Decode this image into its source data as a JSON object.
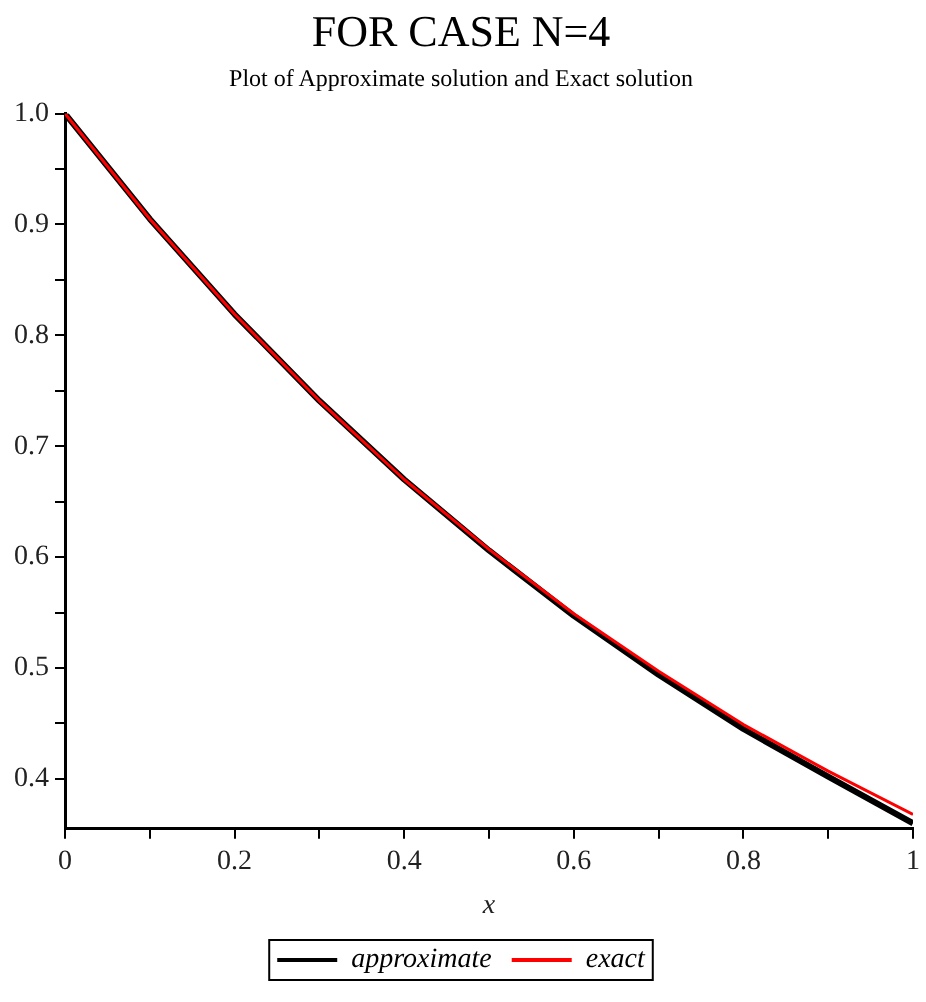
{
  "chart_data": {
    "type": "line",
    "title": "FOR CASE N=4",
    "subtitle": "Plot of Approximate solution and Exact solution",
    "xlabel": "x",
    "x": [
      0,
      0.1,
      0.2,
      0.3,
      0.4,
      0.5,
      0.6,
      0.7,
      0.8,
      0.9,
      1
    ],
    "series": [
      {
        "name": "approximate",
        "color": "#000000",
        "values": [
          1,
          0.905,
          0.819,
          0.741,
          0.67,
          0.606,
          0.547,
          0.494,
          0.445,
          0.402,
          0.36
        ]
      },
      {
        "name": "exact",
        "color": "#ff0000",
        "values": [
          1,
          0.905,
          0.819,
          0.741,
          0.67,
          0.607,
          0.549,
          0.497,
          0.449,
          0.407,
          0.368
        ]
      }
    ],
    "xlim": [
      0,
      1
    ],
    "xticks": [
      0,
      {
        "value": 0.1,
        "label": null
      },
      0.2,
      {
        "value": 0.3,
        "label": null
      },
      0.4,
      {
        "value": 0.5,
        "label": null
      },
      0.6,
      {
        "value": 0.7,
        "label": null
      },
      0.8,
      {
        "value": 0.9,
        "label": null
      },
      1
    ],
    "ylim": [
      0.355,
      1
    ],
    "yticks": [
      0.4,
      {
        "value": 0.45,
        "label": null
      },
      0.5,
      {
        "value": 0.55,
        "label": null
      },
      0.6,
      {
        "value": 0.65,
        "label": null
      },
      0.7,
      {
        "value": 0.75,
        "label": null
      },
      0.8,
      {
        "value": 0.85,
        "label": null
      },
      0.9,
      {
        "value": 0.95,
        "label": null
      },
      {
        "value": 1,
        "label": "1.0"
      }
    ],
    "grid": false,
    "legend": "bottom",
    "marker": "none",
    "line_style": "solid"
  }
}
